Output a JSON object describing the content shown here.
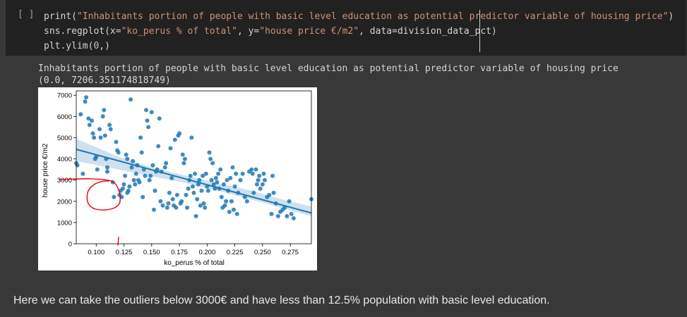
{
  "code_cell": {
    "run_indicator": "[ ]",
    "lines": [
      [
        {
          "t": "print(",
          "c": ""
        },
        {
          "t": "\"Inhabitants portion of people with basic level education as potential predictor variable of housing price\"",
          "c": "tok-str"
        },
        {
          "t": ")",
          "c": ""
        }
      ],
      [
        {
          "t": "sns.regplot(x=",
          "c": ""
        },
        {
          "t": "\"ko_perus % of total\"",
          "c": "tok-str"
        },
        {
          "t": ", y=",
          "c": ""
        },
        {
          "t": "\"house price €/m2\"",
          "c": "tok-str"
        },
        {
          "t": ", data=division_data_pct)",
          "c": ""
        }
      ],
      [
        {
          "t": "plt.ylim(",
          "c": ""
        },
        {
          "t": "0",
          "c": "tok-num"
        },
        {
          "t": ",)",
          "c": ""
        }
      ]
    ]
  },
  "output": {
    "printed_line": "Inhabitants portion of people with basic level education as potential predictor variable of housing price",
    "return_value": "(0.0, 7206.351174818749)"
  },
  "markdown": {
    "text": "Here we can take the outliers below 3000€ and have less than 12.5% population with basic level education."
  },
  "colors": {
    "point": "#1f77b4",
    "regression_line": "#1f77b4",
    "confidence_band": "#a6c8e3",
    "annotation": "#e8000b"
  },
  "chart_data": {
    "type": "scatter",
    "xlabel": "ko_perus % of total",
    "ylabel": "house price €/m2",
    "xlim": [
      0.082,
      0.294
    ],
    "ylim": [
      0,
      7206.35
    ],
    "xticks": [
      0.1,
      0.125,
      0.15,
      0.175,
      0.2,
      0.225,
      0.25,
      0.275
    ],
    "xtick_labels": [
      "0.100",
      "0.125",
      "0.150",
      "0.175",
      "0.200",
      "0.225",
      "0.250",
      "0.275"
    ],
    "yticks": [
      0,
      1000,
      2000,
      3000,
      4000,
      5000,
      6000,
      7000
    ],
    "ytick_labels": [
      "0",
      "1000",
      "2000",
      "3000",
      "4000",
      "5000",
      "6000",
      "7000"
    ],
    "grid": false,
    "regression": {
      "x": [
        0.082,
        0.294
      ],
      "y": [
        4450,
        1450
      ]
    },
    "confidence_band": {
      "x": [
        0.082,
        0.12,
        0.15,
        0.18,
        0.21,
        0.24,
        0.27,
        0.294
      ],
      "lower": [
        3900,
        3500,
        3180,
        2870,
        2500,
        2080,
        1650,
        1300
      ],
      "upper": [
        4950,
        4100,
        3600,
        3220,
        2850,
        2500,
        2060,
        1760
      ]
    },
    "annotations": [
      {
        "type": "freehand_loop",
        "note": "outliers below 3000€, x < 0.125"
      },
      {
        "type": "tick_mark",
        "x": 0.125
      }
    ],
    "points": [
      [
        0.082,
        3800
      ],
      [
        0.083,
        3700
      ],
      [
        0.086,
        6100
      ],
      [
        0.088,
        3300
      ],
      [
        0.09,
        6700
      ],
      [
        0.091,
        6900
      ],
      [
        0.093,
        5900
      ],
      [
        0.094,
        5600
      ],
      [
        0.096,
        5800
      ],
      [
        0.097,
        5200
      ],
      [
        0.098,
        5000
      ],
      [
        0.099,
        4000
      ],
      [
        0.1,
        4100
      ],
      [
        0.101,
        3500
      ],
      [
        0.103,
        5400
      ],
      [
        0.104,
        5000
      ],
      [
        0.106,
        6000
      ],
      [
        0.107,
        6300
      ],
      [
        0.108,
        5100
      ],
      [
        0.109,
        4000
      ],
      [
        0.11,
        3600
      ],
      [
        0.11,
        3400
      ],
      [
        0.112,
        5600
      ],
      [
        0.113,
        5400
      ],
      [
        0.115,
        2900
      ],
      [
        0.116,
        2200
      ],
      [
        0.118,
        4800
      ],
      [
        0.119,
        4400
      ],
      [
        0.12,
        4300
      ],
      [
        0.121,
        2300
      ],
      [
        0.122,
        2500
      ],
      [
        0.123,
        2200
      ],
      [
        0.124,
        2600
      ],
      [
        0.125,
        2800
      ],
      [
        0.126,
        3200
      ],
      [
        0.127,
        4200
      ],
      [
        0.128,
        4000
      ],
      [
        0.128,
        2400
      ],
      [
        0.129,
        2500
      ],
      [
        0.13,
        2700
      ],
      [
        0.131,
        6800
      ],
      [
        0.132,
        3600
      ],
      [
        0.133,
        3900
      ],
      [
        0.134,
        3000
      ],
      [
        0.135,
        2800
      ],
      [
        0.136,
        3300
      ],
      [
        0.137,
        3700
      ],
      [
        0.138,
        3000
      ],
      [
        0.139,
        2900
      ],
      [
        0.14,
        5000
      ],
      [
        0.141,
        4300
      ],
      [
        0.142,
        2200
      ],
      [
        0.143,
        3500
      ],
      [
        0.144,
        3200
      ],
      [
        0.145,
        6300
      ],
      [
        0.146,
        5800
      ],
      [
        0.147,
        5500
      ],
      [
        0.148,
        3000
      ],
      [
        0.149,
        3200
      ],
      [
        0.15,
        6200
      ],
      [
        0.151,
        3700
      ],
      [
        0.152,
        1600
      ],
      [
        0.153,
        2500
      ],
      [
        0.154,
        3400
      ],
      [
        0.155,
        3500
      ],
      [
        0.156,
        4600
      ],
      [
        0.157,
        5900
      ],
      [
        0.158,
        2000
      ],
      [
        0.159,
        3400
      ],
      [
        0.16,
        1800
      ],
      [
        0.162,
        3600
      ],
      [
        0.163,
        3800
      ],
      [
        0.164,
        1700
      ],
      [
        0.165,
        1900
      ],
      [
        0.166,
        2400
      ],
      [
        0.167,
        4500
      ],
      [
        0.168,
        3100
      ],
      [
        0.169,
        2100
      ],
      [
        0.17,
        1800
      ],
      [
        0.171,
        4900
      ],
      [
        0.172,
        1700
      ],
      [
        0.173,
        2300
      ],
      [
        0.174,
        5100
      ],
      [
        0.175,
        5200
      ],
      [
        0.176,
        1900
      ],
      [
        0.177,
        2000
      ],
      [
        0.178,
        4200
      ],
      [
        0.179,
        3800
      ],
      [
        0.18,
        4000
      ],
      [
        0.181,
        2300
      ],
      [
        0.182,
        1700
      ],
      [
        0.183,
        2600
      ],
      [
        0.184,
        3000
      ],
      [
        0.185,
        3200
      ],
      [
        0.186,
        5000
      ],
      [
        0.187,
        2700
      ],
      [
        0.188,
        2400
      ],
      [
        0.189,
        3300
      ],
      [
        0.19,
        1300
      ],
      [
        0.191,
        2100
      ],
      [
        0.192,
        2800
      ],
      [
        0.193,
        3000
      ],
      [
        0.194,
        1800
      ],
      [
        0.195,
        2500
      ],
      [
        0.196,
        3200
      ],
      [
        0.197,
        1900
      ],
      [
        0.198,
        1700
      ],
      [
        0.199,
        3300
      ],
      [
        0.2,
        2700
      ],
      [
        0.201,
        2500
      ],
      [
        0.202,
        4300
      ],
      [
        0.203,
        4000
      ],
      [
        0.204,
        3000
      ],
      [
        0.205,
        3800
      ],
      [
        0.206,
        2800
      ],
      [
        0.207,
        2600
      ],
      [
        0.208,
        3100
      ],
      [
        0.209,
        2900
      ],
      [
        0.21,
        3300
      ],
      [
        0.211,
        2600
      ],
      [
        0.212,
        3500
      ],
      [
        0.213,
        2200
      ],
      [
        0.214,
        1700
      ],
      [
        0.215,
        2800
      ],
      [
        0.216,
        1800
      ],
      [
        0.217,
        2000
      ],
      [
        0.218,
        3000
      ],
      [
        0.219,
        2500
      ],
      [
        0.22,
        1500
      ],
      [
        0.221,
        3100
      ],
      [
        0.222,
        2000
      ],
      [
        0.223,
        3600
      ],
      [
        0.224,
        1600
      ],
      [
        0.225,
        2700
      ],
      [
        0.226,
        3300
      ],
      [
        0.227,
        1400
      ],
      [
        0.228,
        2400
      ],
      [
        0.23,
        3000
      ],
      [
        0.232,
        3300
      ],
      [
        0.234,
        2200
      ],
      [
        0.236,
        2000
      ],
      [
        0.238,
        3400
      ],
      [
        0.24,
        3500
      ],
      [
        0.241,
        3300
      ],
      [
        0.242,
        2400
      ],
      [
        0.244,
        3500
      ],
      [
        0.245,
        2800
      ],
      [
        0.246,
        3000
      ],
      [
        0.247,
        3200
      ],
      [
        0.248,
        2600
      ],
      [
        0.25,
        2800
      ],
      [
        0.251,
        3300
      ],
      [
        0.252,
        3000
      ],
      [
        0.254,
        2200
      ],
      [
        0.256,
        2300
      ],
      [
        0.258,
        1400
      ],
      [
        0.259,
        3200
      ],
      [
        0.26,
        2400
      ],
      [
        0.262,
        1900
      ],
      [
        0.264,
        1300
      ],
      [
        0.266,
        1500
      ],
      [
        0.268,
        1600
      ],
      [
        0.27,
        1700
      ],
      [
        0.272,
        1300
      ],
      [
        0.274,
        2000
      ],
      [
        0.276,
        1400
      ],
      [
        0.278,
        1200
      ],
      [
        0.294,
        2100
      ]
    ]
  }
}
